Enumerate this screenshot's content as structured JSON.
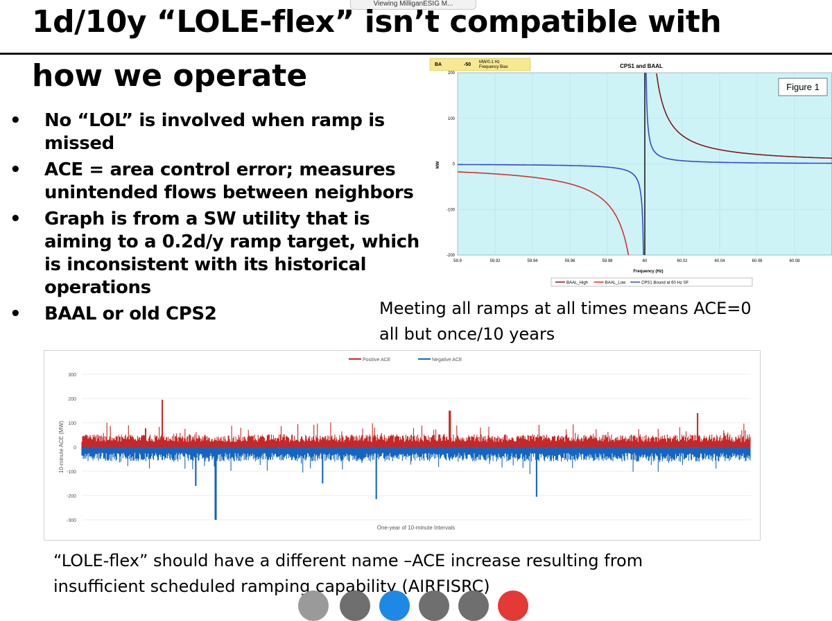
{
  "header": {
    "viewing_tab": "Viewing MilliganESIG M...",
    "title_line1": "1d/10y “LOLE-flex” isn’t compatible with",
    "title_line2": "how we operate"
  },
  "bullets": [
    "No “LOL” is involved when ramp is missed",
    "ACE = area control error; measures unintended flows between neighbors",
    "Graph is from a SW utility that is aiming to a 0.2d/y ramp target, which is inconsistent with its historical operations",
    "BAAL or old CPS2"
  ],
  "captions": {
    "ramps_line1": "Meeting all ramps at all times means ACE=0",
    "ramps_line2": "all but once/10 years",
    "name_line1": "“LOLE-flex” should have a different name –ACE increase resulting from",
    "name_line2": "insufficient scheduled ramping capability (AIRFISRC)"
  },
  "chart_data": [
    {
      "type": "line",
      "title": "CPS1 and BAAL",
      "inset_label": "Figure 1",
      "info_box": {
        "label": "BA",
        "value": "-50",
        "units_line1": "MW/0.1 Hz",
        "units_line2": "Frequency Bias"
      },
      "xlabel": "Frequency (Hz)",
      "ylabel": "MW",
      "xlim": [
        59.9,
        60.1
      ],
      "ylim": [
        -200,
        200
      ],
      "x_ticks": [
        "59.9",
        "59.92",
        "59.94",
        "59.96",
        "59.98",
        "60",
        "60.02",
        "60.04",
        "60.06",
        "60.08"
      ],
      "y_ticks": [
        "200",
        "100",
        "0",
        "-100",
        "-200"
      ],
      "grid": true,
      "legend_position": "bottom",
      "series": [
        {
          "name": "BAAL_High",
          "color": "#7a1a1a",
          "x": [
            60.004,
            60.006,
            60.01,
            60.02,
            60.04,
            60.06,
            60.08,
            60.1
          ],
          "y": [
            200,
            180,
            120,
            58,
            30,
            21,
            16,
            13
          ]
        },
        {
          "name": "BAAL_Low",
          "color": "#d32f2f",
          "x": [
            59.9,
            59.92,
            59.94,
            59.96,
            59.98,
            59.99,
            59.993,
            59.995
          ],
          "y": [
            -18,
            -22,
            -28,
            -43,
            -85,
            -160,
            -200,
            -200
          ]
        },
        {
          "name": "CPS1 Bound at 60 Hz SF",
          "color": "#3a48c8",
          "x": [
            59.9,
            59.92,
            59.94,
            59.96,
            59.98,
            59.995,
            59.999,
            60.001,
            60.005,
            60.02,
            60.06,
            60.1
          ],
          "y": [
            0,
            -1,
            -2,
            -3,
            -7,
            -25,
            -200,
            200,
            25,
            7,
            2,
            0
          ]
        }
      ]
    },
    {
      "type": "bar",
      "xlabel": "One-year of 10-minute Intervals",
      "ylabel": "10-minute ACE (MW)",
      "ylim": [
        -300,
        300
      ],
      "y_ticks": [
        "300",
        "200",
        "100",
        "0",
        "-100",
        "-200",
        "-300"
      ],
      "legend_position": "top",
      "series": [
        {
          "name": "Positive ACE",
          "color": "#c62828",
          "typical": 35,
          "notable_peaks": [
            [
              0.12,
              195
            ],
            [
              0.55,
              150
            ],
            [
              0.92,
              140
            ]
          ]
        },
        {
          "name": "Negative ACE",
          "color": "#1565c0",
          "typical": -40,
          "notable_dips": [
            [
              0.2,
              -300
            ],
            [
              0.44,
              -215
            ],
            [
              0.68,
              -205
            ],
            [
              0.17,
              -160
            ],
            [
              0.36,
              -150
            ]
          ]
        }
      ]
    }
  ],
  "colors": {
    "chart_bg": "#cdf3f7",
    "info_box_bg": "#f6e98f"
  }
}
